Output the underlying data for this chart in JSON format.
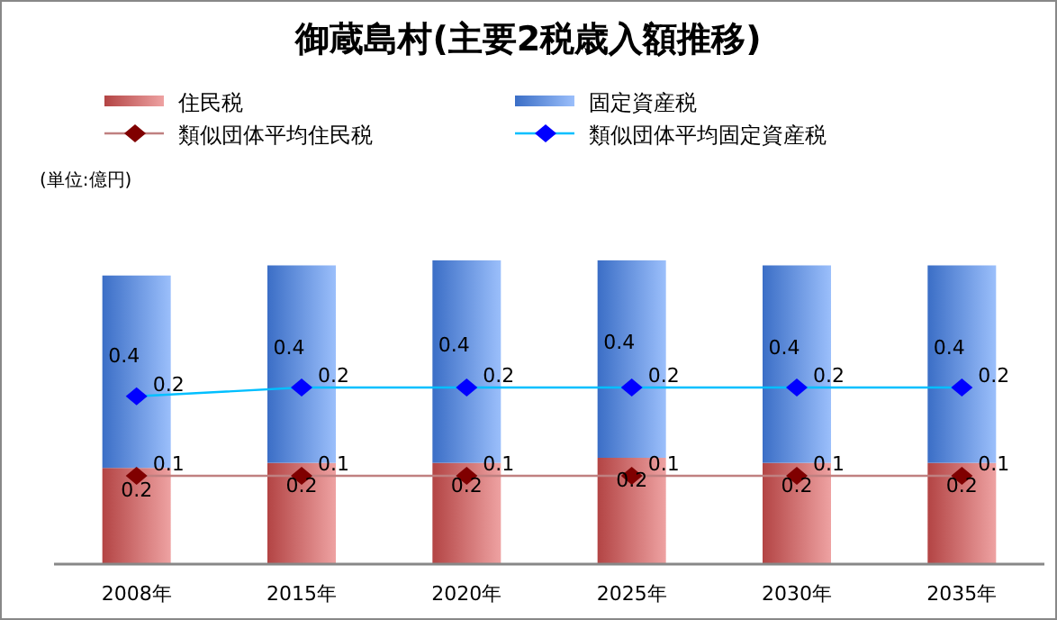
{
  "chart_data": {
    "type": "bar",
    "title": "御蔵島村(主要2税歳入額推移)",
    "annotations": [
      "(単位:億円)"
    ],
    "categories": [
      "2008年",
      "2015年",
      "2020年",
      "2025年",
      "2030年",
      "2035年"
    ],
    "stacked": true,
    "legend": "top",
    "marker": "diamond",
    "series": [
      {
        "name": "住民税",
        "color": "#e05555",
        "values": [
          0.19,
          0.2,
          0.2,
          0.21,
          0.2,
          0.2
        ],
        "value_labels": [
          "0.2",
          "0.2",
          "0.2",
          "0.2",
          "0.2",
          "0.2"
        ]
      },
      {
        "name": "固定資産税",
        "color": "#4a8af8",
        "values": [
          0.38,
          0.39,
          0.4,
          0.39,
          0.39,
          0.39
        ],
        "value_labels": [
          "0.4",
          "0.4",
          "0.4",
          "0.4",
          "0.4",
          "0.4"
        ]
      },
      {
        "name": "類似団体平均住民税",
        "type": "line",
        "axis": "y2",
        "color": "#800000",
        "values": [
          0.1,
          0.1,
          0.1,
          0.1,
          0.1,
          0.1
        ],
        "value_labels": [
          "0.1",
          "0.1",
          "0.1",
          "0.1",
          "0.1",
          "0.1"
        ]
      },
      {
        "name": "類似団体平均固定資産税",
        "type": "line",
        "axis": "y2",
        "color": "#0000ff",
        "values": [
          0.19,
          0.2,
          0.2,
          0.2,
          0.2,
          0.2
        ],
        "value_labels": [
          "0.2",
          "0.2",
          "0.2",
          "0.2",
          "0.2",
          "0.2"
        ]
      }
    ]
  }
}
